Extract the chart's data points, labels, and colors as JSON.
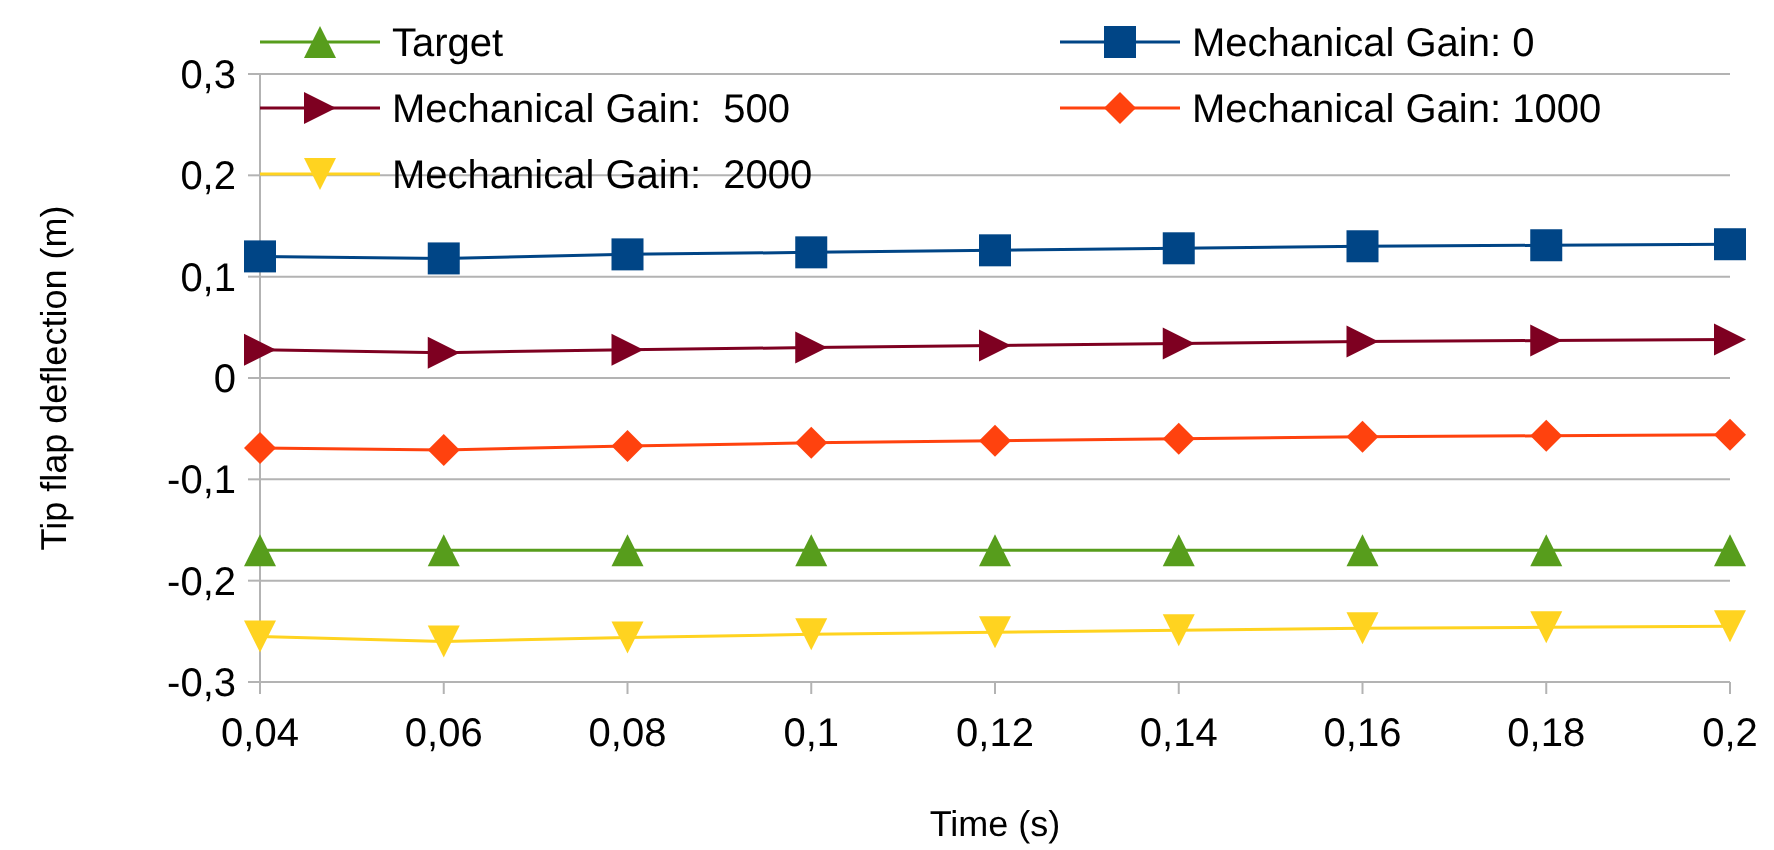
{
  "chart_data": {
    "type": "line",
    "xlabel": "Time (s)",
    "ylabel": "Tip flap deflection (m)",
    "x": [
      0.04,
      0.06,
      0.08,
      0.1,
      0.12,
      0.14,
      0.16,
      0.18,
      0.2
    ],
    "series": [
      {
        "name": "Target",
        "color": "#579d1c",
        "marker": "triangle",
        "values": [
          -0.17,
          -0.17,
          -0.17,
          -0.17,
          -0.17,
          -0.17,
          -0.17,
          -0.17,
          -0.17
        ]
      },
      {
        "name": "Mechanical Gain: 0",
        "color": "#004586",
        "marker": "square",
        "values": [
          0.12,
          0.118,
          0.122,
          0.124,
          0.126,
          0.128,
          0.13,
          0.131,
          0.132
        ]
      },
      {
        "name": "Mechanical Gain:  500",
        "color": "#7e0021",
        "marker": "triangle-right",
        "values": [
          0.028,
          0.025,
          0.028,
          0.03,
          0.032,
          0.034,
          0.036,
          0.037,
          0.038
        ]
      },
      {
        "name": "Mechanical Gain: 1000",
        "color": "#ff420e",
        "marker": "diamond",
        "values": [
          -0.069,
          -0.071,
          -0.067,
          -0.064,
          -0.062,
          -0.06,
          -0.058,
          -0.057,
          -0.056
        ]
      },
      {
        "name": "Mechanical Gain:  2000",
        "color": "#ffd320",
        "marker": "triangle-down",
        "values": [
          -0.255,
          -0.26,
          -0.256,
          -0.253,
          -0.251,
          -0.249,
          -0.247,
          -0.246,
          -0.245
        ]
      }
    ],
    "xlim": [
      0.04,
      0.2
    ],
    "xticks": [
      {
        "value": 0.04,
        "label": "0,04"
      },
      {
        "value": 0.06,
        "label": "0,06"
      },
      {
        "value": 0.08,
        "label": "0,08"
      },
      {
        "value": 0.1,
        "label": "0,1"
      },
      {
        "value": 0.12,
        "label": "0,12"
      },
      {
        "value": 0.14,
        "label": "0,14"
      },
      {
        "value": 0.16,
        "label": "0,16"
      },
      {
        "value": 0.18,
        "label": "0,18"
      },
      {
        "value": 0.2,
        "label": "0,2"
      }
    ],
    "ylim": [
      -0.3,
      0.3
    ],
    "yticks": [
      {
        "value": -0.3,
        "label": "-0,3"
      },
      {
        "value": -0.2,
        "label": "-0,2"
      },
      {
        "value": -0.1,
        "label": "-0,1"
      },
      0,
      {
        "value": 0.1,
        "label": "0,1"
      },
      {
        "value": 0.2,
        "label": "0,2"
      },
      {
        "value": 0.3,
        "label": "0,3"
      }
    ],
    "grid": "y",
    "legend": "top"
  }
}
